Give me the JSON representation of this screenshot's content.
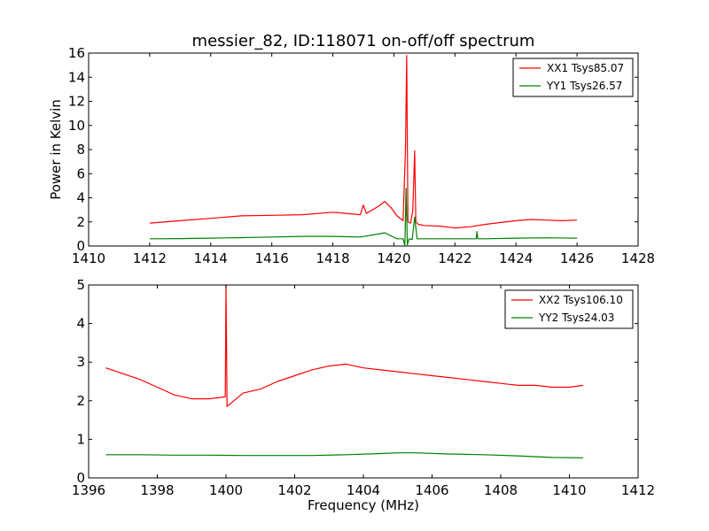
{
  "chart_data": [
    {
      "type": "line",
      "title": "messier_82, ID:118071 on-off/off spectrum",
      "xlabel": "",
      "ylabel": "Power in Kelvin",
      "xlim": [
        1410,
        1428
      ],
      "ylim": [
        0,
        16
      ],
      "x_ticks": [
        1410,
        1412,
        1414,
        1416,
        1418,
        1420,
        1422,
        1424,
        1426,
        1428
      ],
      "y_ticks": [
        0,
        2,
        4,
        6,
        8,
        10,
        12,
        14,
        16
      ],
      "legend_position": "top-right",
      "grid": false,
      "series": [
        {
          "name": "XX1 Tsys85.07",
          "color": "#ff0000",
          "x": [
            1412.0,
            1413.0,
            1414.0,
            1415.0,
            1416.0,
            1417.0,
            1418.0,
            1418.9,
            1419.0,
            1419.1,
            1419.5,
            1419.7,
            1419.9,
            1420.1,
            1420.3,
            1420.38,
            1420.42,
            1420.46,
            1420.55,
            1420.62,
            1420.68,
            1420.72,
            1420.8,
            1421.0,
            1421.5,
            1422.0,
            1422.5,
            1423.0,
            1423.5,
            1424.0,
            1424.5,
            1425.0,
            1425.5,
            1426.0
          ],
          "y": [
            1.9,
            2.1,
            2.3,
            2.5,
            2.55,
            2.6,
            2.8,
            2.6,
            3.4,
            2.7,
            3.3,
            3.7,
            3.2,
            2.5,
            2.1,
            8.0,
            15.8,
            2.0,
            1.9,
            3.0,
            7.9,
            2.0,
            1.8,
            1.7,
            1.65,
            1.5,
            1.6,
            1.8,
            1.95,
            2.1,
            2.2,
            2.15,
            2.1,
            2.15
          ]
        },
        {
          "name": "YY1 Tsys26.57",
          "color": "#008000",
          "x": [
            1412.0,
            1413.0,
            1414.0,
            1415.0,
            1416.0,
            1417.0,
            1418.0,
            1418.9,
            1419.5,
            1419.7,
            1420.1,
            1420.3,
            1420.36,
            1420.4,
            1420.44,
            1420.5,
            1420.6,
            1420.68,
            1420.76,
            1421.0,
            1422.0,
            1422.7,
            1422.72,
            1422.75,
            1423.0,
            1424.0,
            1425.0,
            1426.0
          ],
          "y": [
            0.6,
            0.62,
            0.65,
            0.7,
            0.75,
            0.8,
            0.8,
            0.75,
            1.0,
            1.1,
            0.6,
            0.6,
            0.05,
            4.8,
            0.1,
            0.6,
            0.55,
            2.4,
            0.6,
            0.6,
            0.6,
            0.6,
            1.2,
            0.6,
            0.6,
            0.65,
            0.68,
            0.65
          ]
        }
      ]
    },
    {
      "type": "line",
      "title": "",
      "xlabel": "Frequency (MHz)",
      "ylabel": "",
      "xlim": [
        1396,
        1412
      ],
      "ylim": [
        0,
        5
      ],
      "x_ticks": [
        1396,
        1398,
        1400,
        1402,
        1404,
        1406,
        1408,
        1410,
        1412
      ],
      "y_ticks": [
        0,
        1,
        2,
        3,
        4,
        5
      ],
      "legend_position": "top-right",
      "grid": false,
      "series": [
        {
          "name": "XX2 Tsys106.10",
          "color": "#ff0000",
          "x": [
            1396.5,
            1397.0,
            1397.5,
            1398.0,
            1398.5,
            1399.0,
            1399.5,
            1399.98,
            1400.0,
            1400.03,
            1400.5,
            1401.0,
            1401.5,
            1402.0,
            1402.5,
            1403.0,
            1403.5,
            1404.0,
            1404.5,
            1405.0,
            1405.5,
            1406.0,
            1406.5,
            1407.0,
            1407.5,
            1408.0,
            1408.5,
            1409.0,
            1409.5,
            1410.0,
            1410.4
          ],
          "y": [
            2.85,
            2.7,
            2.55,
            2.35,
            2.15,
            2.05,
            2.05,
            2.1,
            5.0,
            1.85,
            2.2,
            2.3,
            2.5,
            2.65,
            2.8,
            2.9,
            2.95,
            2.85,
            2.8,
            2.75,
            2.7,
            2.65,
            2.6,
            2.55,
            2.5,
            2.45,
            2.4,
            2.4,
            2.35,
            2.35,
            2.4
          ]
        },
        {
          "name": "YY2 Tsys24.03",
          "color": "#008000",
          "x": [
            1396.5,
            1397.5,
            1398.5,
            1399.5,
            1400.5,
            1401.5,
            1402.5,
            1403.5,
            1404.5,
            1405.0,
            1405.5,
            1406.5,
            1407.5,
            1408.5,
            1409.5,
            1410.4
          ],
          "y": [
            0.6,
            0.6,
            0.59,
            0.59,
            0.58,
            0.58,
            0.58,
            0.6,
            0.63,
            0.65,
            0.65,
            0.62,
            0.6,
            0.57,
            0.53,
            0.52
          ]
        }
      ]
    }
  ]
}
